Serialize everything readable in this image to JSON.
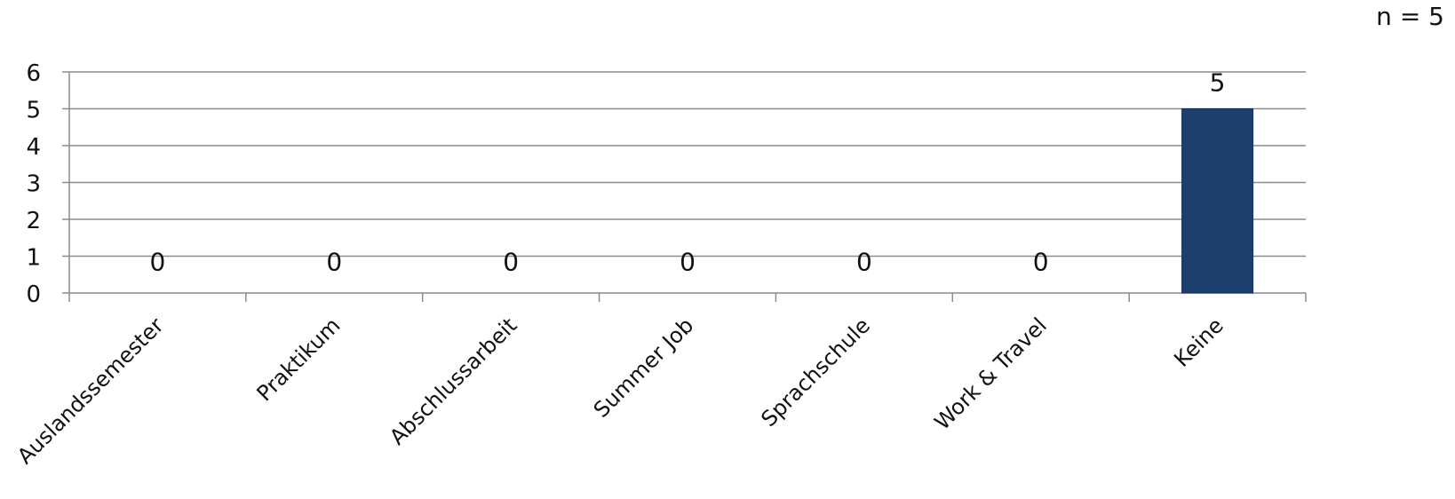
{
  "chart_data": {
    "type": "bar",
    "categories": [
      "Auslandssemester",
      "Praktikum",
      "Abschlussarbeit",
      "Summer Job",
      "Sprachschule",
      "Work & Travel",
      "Keine"
    ],
    "values": [
      0,
      0,
      0,
      0,
      0,
      0,
      5
    ],
    "data_labels": [
      "0",
      "0",
      "0",
      "0",
      "0",
      "0",
      "5"
    ],
    "ylim": [
      0,
      6
    ],
    "yticks": [
      0,
      1,
      2,
      3,
      4,
      5,
      6
    ],
    "ytick_labels": [
      "0",
      "1",
      "2",
      "3",
      "4",
      "5",
      "6"
    ],
    "grid": true,
    "bar_color": "#1d3f6e",
    "grid_color": "#8c8c8c",
    "note": "n = 5"
  }
}
